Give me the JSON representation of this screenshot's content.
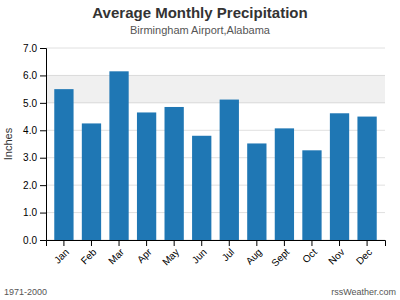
{
  "chart_data": {
    "type": "bar",
    "title": "Average Monthly Precipitation",
    "subtitle": "Birmingham Airport,Alabama",
    "y_label": "Inches",
    "categories": [
      "Jan",
      "Feb",
      "Mar",
      "Apr",
      "May",
      "Jun",
      "Jul",
      "Aug",
      "Sept",
      "Oct",
      "Nov",
      "Dec"
    ],
    "values": [
      5.5,
      4.25,
      6.15,
      4.65,
      4.85,
      3.8,
      5.12,
      3.52,
      4.07,
      3.27,
      4.62,
      4.5
    ],
    "ylim": [
      0.0,
      7.0
    ],
    "yticks": [
      {
        "value": 0.0,
        "label": "0.0"
      },
      {
        "value": 1.0,
        "label": "1.0"
      },
      {
        "value": 2.0,
        "label": "2.0"
      },
      {
        "value": 3.0,
        "label": "3.0"
      },
      {
        "value": 4.0,
        "label": "4.0"
      },
      {
        "value": 5.0,
        "label": "5.0"
      },
      {
        "value": 6.0,
        "label": "6.0"
      },
      {
        "value": 7.0,
        "label": "7.0"
      }
    ],
    "highlight_band": [
      5.0,
      6.0
    ],
    "grid": true,
    "annotations": [
      "1971-2000",
      "rssWeather.com"
    ]
  }
}
